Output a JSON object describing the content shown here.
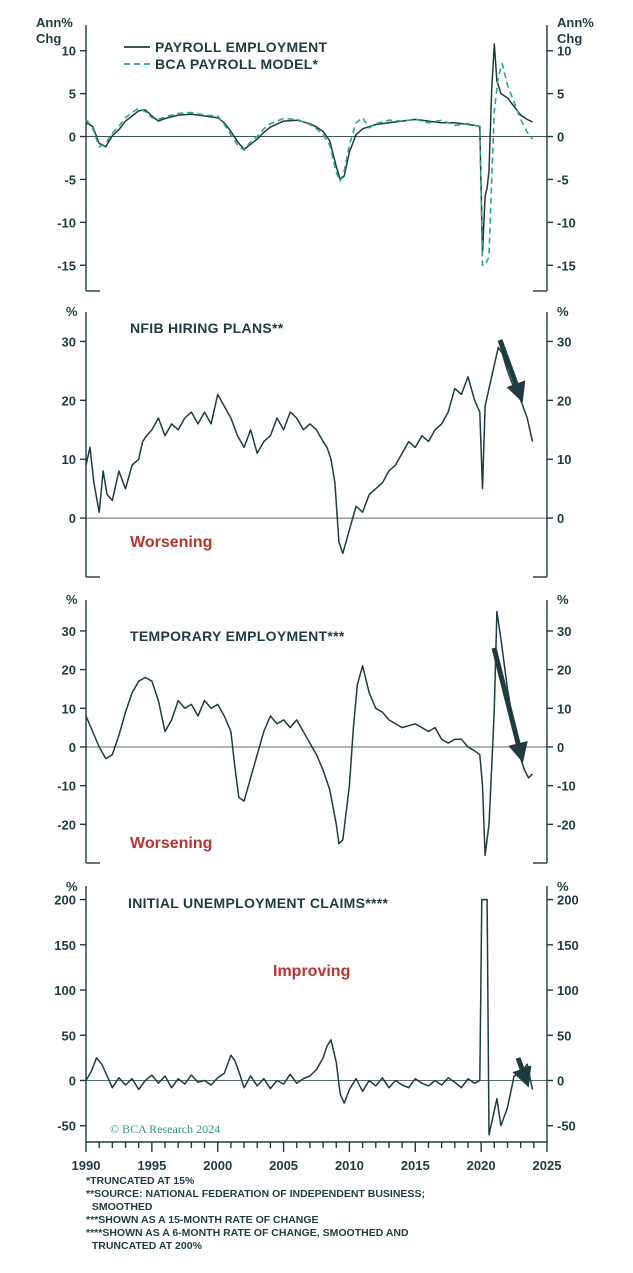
{
  "footnotes": [
    "*TRUNCATED AT 15%",
    "**SOURCE: NATIONAL FEDERATION OF INDEPENDENT BUSINESS;",
    "  SMOOTHED",
    "***SHOWN AS A 15-MONTH RATE OF CHANGE",
    "****SHOWN AS A 6-MONTH RATE OF CHANGE, SMOOTHED AND",
    "  TRUNCATED AT 200%"
  ],
  "credit": "© BCA Research 2024",
  "colors": {
    "line": "#1f3b3f",
    "model": "#2fa77f",
    "annotation": "#b7342f"
  },
  "chart_data": [
    {
      "type": "line",
      "title": "",
      "ylabel_left": "Ann% Chg",
      "ylabel_right": "Ann% Chg",
      "ylim": [
        -18,
        13
      ],
      "yticks": [
        -15,
        -10,
        -5,
        0,
        5,
        10
      ],
      "xlim": [
        1990,
        2025
      ],
      "legend": [
        "PAYROLL EMPLOYMENT",
        "BCA PAYROLL MODEL*"
      ],
      "series": [
        {
          "name": "PAYROLL EMPLOYMENT",
          "x": [
            1990,
            1990.5,
            1991,
            1991.5,
            1992,
            1992.5,
            1993,
            1993.5,
            1994,
            1994.5,
            1995,
            1995.5,
            1996,
            1997,
            1998,
            1999,
            2000,
            2000.5,
            2001,
            2001.5,
            2002,
            2002.5,
            2003,
            2003.5,
            2004,
            2005,
            2006,
            2007,
            2007.5,
            2008,
            2008.5,
            2009,
            2009.3,
            2009.6,
            2010,
            2010.5,
            2011,
            2012,
            2013,
            2014,
            2015,
            2016,
            2017,
            2018,
            2019,
            2019.9,
            2020.1,
            2020.3,
            2020.45,
            2020.6,
            2020.8,
            2021,
            2021.2,
            2021.5,
            2022,
            2022.5,
            2023,
            2023.5,
            2023.9
          ],
          "values": [
            1.6,
            1.2,
            -0.8,
            -1.2,
            0.1,
            0.8,
            1.8,
            2.4,
            3.0,
            3.1,
            2.4,
            1.8,
            2.1,
            2.5,
            2.6,
            2.4,
            2.2,
            1.6,
            0.6,
            -0.6,
            -1.5,
            -0.9,
            -0.3,
            0.5,
            1.1,
            1.8,
            1.9,
            1.5,
            1.1,
            0.6,
            -0.5,
            -3.5,
            -5.0,
            -4.6,
            -1.8,
            0.2,
            0.9,
            1.4,
            1.6,
            1.8,
            2.0,
            1.8,
            1.6,
            1.6,
            1.4,
            1.2,
            -13.5,
            -7.0,
            -6.0,
            -4.0,
            5.5,
            10.8,
            6.5,
            5.0,
            4.5,
            3.5,
            2.5,
            2.0,
            1.7
          ]
        },
        {
          "name": "BCA PAYROLL MODEL*",
          "x": [
            1990,
            1990.5,
            1991,
            1991.5,
            1992,
            1992.5,
            1993,
            1993.5,
            1994,
            1994.5,
            1995,
            1995.5,
            1996,
            1997,
            1998,
            1999,
            2000,
            2000.5,
            2001,
            2001.5,
            2002,
            2002.5,
            2003,
            2003.5,
            2004,
            2005,
            2006,
            2007,
            2007.5,
            2008,
            2008.5,
            2009,
            2009.3,
            2009.6,
            2010,
            2010.5,
            2011,
            2011.5,
            2012,
            2013,
            2014,
            2015,
            2016,
            2017,
            2018,
            2019,
            2019.9,
            2020.1,
            2020.3,
            2020.6,
            2020.8,
            2021,
            2021.3,
            2021.6,
            2022,
            2022.5,
            2023,
            2023.5,
            2023.9
          ],
          "values": [
            2.0,
            1.0,
            -1.2,
            -0.8,
            0.4,
            1.2,
            2.2,
            2.8,
            3.3,
            2.9,
            2.2,
            2.0,
            2.3,
            2.7,
            2.8,
            2.5,
            2.4,
            1.4,
            0.2,
            -1.0,
            -1.6,
            -0.6,
            0.0,
            0.9,
            1.5,
            2.1,
            2.0,
            1.4,
            0.9,
            0.2,
            -1.0,
            -4.2,
            -5.2,
            -4.0,
            -1.0,
            1.6,
            2.2,
            1.0,
            1.5,
            1.9,
            1.8,
            2.0,
            1.6,
            1.9,
            1.3,
            1.5,
            1.2,
            -15.0,
            -15.0,
            -14.0,
            -5.0,
            3.0,
            7.0,
            8.5,
            6.0,
            4.0,
            2.0,
            0.5,
            -0.3
          ]
        }
      ]
    },
    {
      "type": "line",
      "title": "NFIB HIRING PLANS**",
      "ylabel_left": "%",
      "ylabel_right": "%",
      "ylim": [
        -10,
        35
      ],
      "yticks": [
        0,
        10,
        20,
        30
      ],
      "xlim": [
        1990,
        2025
      ],
      "annotation": "Worsening",
      "series": [
        {
          "name": "NFIB HIRING PLANS",
          "x": [
            1990,
            1990.3,
            1990.6,
            1991,
            1991.3,
            1991.6,
            1992,
            1992.5,
            1993,
            1993.5,
            1994,
            1994.3,
            1994.6,
            1995,
            1995.5,
            1996,
            1996.5,
            1997,
            1997.5,
            1998,
            1998.5,
            1999,
            1999.5,
            2000,
            2000.5,
            2001,
            2001.5,
            2002,
            2002.5,
            2003,
            2003.5,
            2004,
            2004.5,
            2005,
            2005.5,
            2006,
            2006.5,
            2007,
            2007.5,
            2008,
            2008.3,
            2008.6,
            2008.9,
            2009.2,
            2009.5,
            2010,
            2010.5,
            2011,
            2011.5,
            2012,
            2012.5,
            2013,
            2013.5,
            2014,
            2014.5,
            2015,
            2015.5,
            2016,
            2016.5,
            2017,
            2017.5,
            2018,
            2018.5,
            2019,
            2019.5,
            2019.9,
            2020.1,
            2020.3,
            2020.6,
            2021,
            2021.3,
            2021.6,
            2022,
            2022.5,
            2023,
            2023.5,
            2023.9
          ],
          "values": [
            9,
            12,
            6,
            1,
            8,
            4,
            3,
            8,
            5,
            9,
            10,
            13,
            14,
            15,
            17,
            14,
            16,
            15,
            17,
            18,
            16,
            18,
            16,
            21,
            19,
            17,
            14,
            12,
            15,
            11,
            13,
            14,
            17,
            15,
            18,
            17,
            15,
            16,
            15,
            13,
            12,
            10,
            6,
            -4,
            -6,
            -2,
            2,
            1,
            4,
            5,
            6,
            8,
            9,
            11,
            13,
            12,
            14,
            13,
            15,
            16,
            18,
            22,
            21,
            24,
            20,
            18,
            5,
            19,
            22,
            26,
            29,
            28,
            25,
            22,
            20,
            17,
            13
          ]
        }
      ]
    },
    {
      "type": "line",
      "title": "TEMPORARY EMPLOYMENT***",
      "ylabel_left": "%",
      "ylabel_right": "%",
      "ylim": [
        -30,
        38
      ],
      "yticks": [
        -20,
        -10,
        0,
        10,
        20,
        30
      ],
      "xlim": [
        1990,
        2025
      ],
      "annotation": "Worsening",
      "series": [
        {
          "name": "TEMPORARY EMPLOYMENT",
          "x": [
            1990,
            1990.5,
            1991,
            1991.5,
            1992,
            1992.5,
            1993,
            1993.5,
            1994,
            1994.5,
            1995,
            1995.5,
            1996,
            1996.5,
            1997,
            1997.5,
            1998,
            1998.5,
            1999,
            1999.5,
            2000,
            2000.5,
            2001,
            2001.3,
            2001.6,
            2002,
            2002.5,
            2003,
            2003.5,
            2004,
            2004.5,
            2005,
            2005.5,
            2006,
            2006.5,
            2007,
            2007.5,
            2008,
            2008.5,
            2009,
            2009.2,
            2009.5,
            2010,
            2010.3,
            2010.6,
            2011,
            2011.5,
            2012,
            2012.5,
            2013,
            2014,
            2015,
            2016,
            2016.5,
            2017,
            2017.5,
            2018,
            2018.5,
            2019,
            2019.5,
            2019.9,
            2020.1,
            2020.3,
            2020.6,
            2020.9,
            2021,
            2021.2,
            2021.5,
            2022,
            2022.5,
            2023,
            2023.3,
            2023.6,
            2023.9
          ],
          "values": [
            8,
            4,
            0,
            -3,
            -2,
            3,
            9,
            14,
            17,
            18,
            17,
            12,
            4,
            7,
            12,
            10,
            11,
            8,
            12,
            10,
            11,
            8,
            4,
            -5,
            -13,
            -14,
            -8,
            -2,
            4,
            8,
            6,
            7,
            5,
            7,
            4,
            1,
            -2,
            -6,
            -11,
            -20,
            -25,
            -24,
            -10,
            5,
            16,
            21,
            14,
            10,
            9,
            7,
            5,
            6,
            4,
            5,
            2,
            1,
            2,
            2,
            0,
            -1,
            -2,
            -10,
            -28,
            -20,
            2,
            10,
            35,
            28,
            15,
            5,
            -3,
            -6,
            -8,
            -7
          ]
        }
      ]
    },
    {
      "type": "line",
      "title": "INITIAL UNEMPLOYMENT CLAIMS****",
      "ylabel_left": "%",
      "ylabel_right": "%",
      "ylim": [
        -68,
        215
      ],
      "yticks": [
        -50,
        0,
        50,
        100,
        150,
        200
      ],
      "xlim": [
        1990,
        2025
      ],
      "xticks": [
        1990,
        1995,
        2000,
        2005,
        2010,
        2015,
        2020,
        2025
      ],
      "annotation": "Improving",
      "series": [
        {
          "name": "INITIAL UNEMPLOYMENT CLAIMS",
          "x": [
            1990,
            1990.4,
            1990.8,
            1991.2,
            1991.6,
            1992,
            1992.5,
            1993,
            1993.5,
            1994,
            1994.5,
            1995,
            1995.5,
            1996,
            1996.5,
            1997,
            1997.5,
            1998,
            1998.5,
            1999,
            1999.5,
            2000,
            2000.5,
            2001,
            2001.3,
            2001.6,
            2002,
            2002.5,
            2003,
            2003.5,
            2004,
            2004.5,
            2005,
            2005.5,
            2006,
            2006.5,
            2007,
            2007.5,
            2008,
            2008.3,
            2008.6,
            2009,
            2009.3,
            2009.6,
            2010,
            2010.5,
            2011,
            2011.5,
            2012,
            2012.5,
            2013,
            2013.5,
            2014,
            2014.5,
            2015,
            2015.5,
            2016,
            2016.5,
            2017,
            2017.5,
            2018,
            2018.5,
            2019,
            2019.5,
            2019.9,
            2020.05,
            2020.1,
            2020.4,
            2020.45,
            2020.6,
            2020.9,
            2021.2,
            2021.5,
            2022,
            2022.5,
            2023,
            2023.5,
            2023.9
          ],
          "values": [
            0,
            10,
            25,
            18,
            5,
            -8,
            3,
            -5,
            2,
            -10,
            0,
            6,
            -3,
            5,
            -8,
            2,
            -4,
            6,
            -2,
            0,
            -5,
            3,
            8,
            28,
            22,
            10,
            -8,
            5,
            -6,
            2,
            -9,
            0,
            -4,
            7,
            -3,
            2,
            5,
            12,
            25,
            38,
            45,
            20,
            -15,
            -25,
            -10,
            2,
            -12,
            0,
            -6,
            3,
            -8,
            0,
            -5,
            -8,
            2,
            -3,
            -6,
            0,
            -5,
            3,
            -2,
            -8,
            2,
            -3,
            0,
            200,
            200,
            200,
            200,
            -60,
            -40,
            -20,
            -50,
            -30,
            5,
            8,
            18,
            -10
          ]
        }
      ]
    }
  ]
}
